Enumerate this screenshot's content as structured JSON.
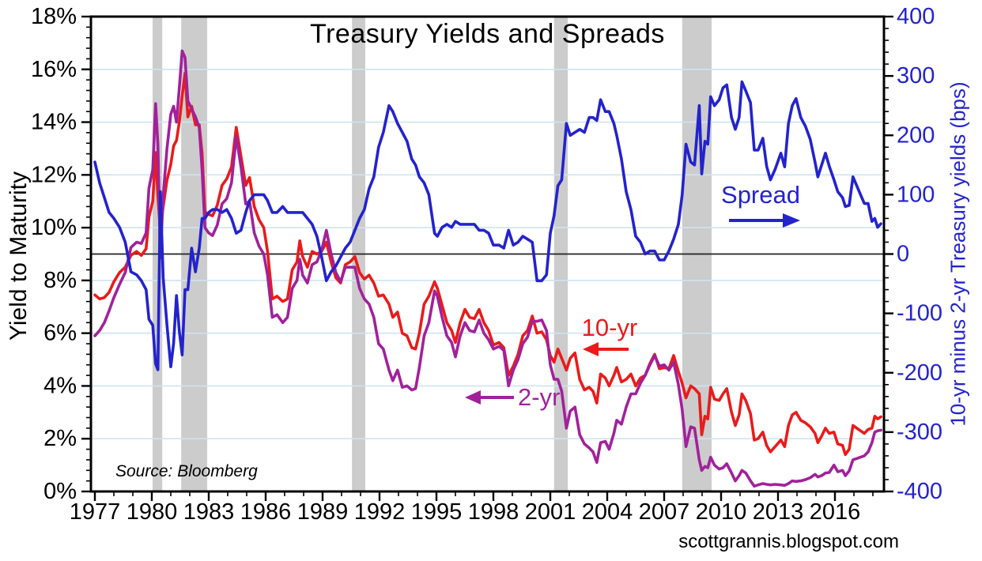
{
  "chart_data": {
    "type": "line",
    "title": "Treasury Yields and Spreads",
    "source": "Source: Bloomberg",
    "website": "scottgrannis.blogspot.com",
    "left_axis": {
      "title": "Yield to Maturity",
      "unit": "%",
      "min": 0,
      "max": 18,
      "major_step": 2,
      "minor_step": 0.4,
      "tick_labels": [
        "0%",
        "2%",
        "4%",
        "6%",
        "8%",
        "10%",
        "12%",
        "14%",
        "16%",
        "18%"
      ]
    },
    "right_axis": {
      "title": "10-yr minus 2-yr Treasury yields (bps)",
      "unit": "bps",
      "min": -400,
      "max": 400,
      "major_step": 100,
      "minor_step": 20,
      "tick_labels": [
        "-400",
        "-300",
        "-200",
        "-100",
        "0",
        "100",
        "200",
        "300",
        "400"
      ]
    },
    "x_axis": {
      "min": 1977,
      "max": 2018.7,
      "major_step": 3,
      "minor_step": 1,
      "tick_labels": [
        "1977",
        "1980",
        "1983",
        "1986",
        "1989",
        "1992",
        "1995",
        "1998",
        "2001",
        "2004",
        "2007",
        "2010",
        "2013",
        "2016"
      ]
    },
    "grid": "horizontal-only",
    "zero_line_bps": 0,
    "recession_bands": [
      [
        1980.04,
        1980.55
      ],
      [
        1981.55,
        1982.92
      ],
      [
        1990.55,
        1991.25
      ],
      [
        2001.2,
        2001.92
      ],
      [
        2007.95,
        2009.5
      ]
    ],
    "annotations": {
      "spread": "Spread",
      "ten_year": "10-yr",
      "two_year": "2-yr"
    },
    "series_meta": [
      {
        "name": "10-yr",
        "axis": "left",
        "color": "#e91b1b"
      },
      {
        "name": "2-yr",
        "axis": "left",
        "color": "#a1219b"
      },
      {
        "name": "Spread",
        "axis": "right",
        "color": "#2323cd"
      }
    ],
    "points_format": [
      "year",
      "ten_year_yield_pct",
      "two_year_yield_pct",
      "spread_bps"
    ],
    "points": [
      [
        1977.0,
        7.45,
        5.9,
        155
      ],
      [
        1977.25,
        7.3,
        6.1,
        120
      ],
      [
        1977.5,
        7.35,
        6.4,
        95
      ],
      [
        1977.75,
        7.55,
        6.85,
        70
      ],
      [
        1978.0,
        7.95,
        7.35,
        60
      ],
      [
        1978.3,
        8.3,
        7.85,
        45
      ],
      [
        1978.6,
        8.5,
        8.3,
        20
      ],
      [
        1978.9,
        8.95,
        9.25,
        -30
      ],
      [
        1979.2,
        9.1,
        9.45,
        -35
      ],
      [
        1979.45,
        8.95,
        9.4,
        -45
      ],
      [
        1979.7,
        9.2,
        9.8,
        -60
      ],
      [
        1979.85,
        10.4,
        11.5,
        -110
      ],
      [
        1980.05,
        11.0,
        12.2,
        -120
      ],
      [
        1980.2,
        12.85,
        14.7,
        -185
      ],
      [
        1980.32,
        11.2,
        13.15,
        -195
      ],
      [
        1980.45,
        9.9,
        8.85,
        105
      ],
      [
        1980.6,
        10.8,
        11.2,
        -40
      ],
      [
        1980.8,
        11.8,
        13.0,
        -120
      ],
      [
        1981.0,
        12.4,
        14.3,
        -190
      ],
      [
        1981.15,
        13.1,
        14.6,
        -150
      ],
      [
        1981.3,
        13.3,
        14.0,
        -70
      ],
      [
        1981.45,
        14.0,
        15.3,
        -130
      ],
      [
        1981.6,
        15.0,
        16.7,
        -170
      ],
      [
        1981.75,
        15.85,
        16.45,
        -60
      ],
      [
        1981.9,
        14.2,
        14.8,
        -60
      ],
      [
        1982.1,
        14.6,
        14.5,
        10
      ],
      [
        1982.3,
        13.9,
        14.2,
        -30
      ],
      [
        1982.5,
        13.9,
        13.8,
        10
      ],
      [
        1982.65,
        12.8,
        12.2,
        60
      ],
      [
        1982.8,
        10.6,
        10.0,
        60
      ],
      [
        1983.0,
        10.5,
        9.8,
        70
      ],
      [
        1983.2,
        10.45,
        9.7,
        75
      ],
      [
        1983.45,
        10.85,
        10.1,
        75
      ],
      [
        1983.7,
        11.6,
        10.9,
        70
      ],
      [
        1983.95,
        11.85,
        11.1,
        75
      ],
      [
        1984.2,
        12.3,
        11.7,
        60
      ],
      [
        1984.45,
        13.8,
        13.45,
        35
      ],
      [
        1984.7,
        12.7,
        12.3,
        40
      ],
      [
        1984.95,
        11.6,
        10.9,
        70
      ],
      [
        1985.15,
        11.9,
        11.0,
        90
      ],
      [
        1985.4,
        10.8,
        9.8,
        100
      ],
      [
        1985.65,
        10.3,
        9.3,
        100
      ],
      [
        1985.9,
        10.0,
        9.0,
        100
      ],
      [
        1986.1,
        9.1,
        8.2,
        90
      ],
      [
        1986.35,
        7.3,
        6.6,
        70
      ],
      [
        1986.6,
        7.4,
        6.7,
        70
      ],
      [
        1986.9,
        7.2,
        6.4,
        80
      ],
      [
        1987.15,
        7.3,
        6.6,
        70
      ],
      [
        1987.4,
        8.4,
        7.7,
        70
      ],
      [
        1987.65,
        8.7,
        8.0,
        70
      ],
      [
        1987.8,
        9.5,
        8.8,
        70
      ],
      [
        1987.95,
        8.9,
        8.2,
        70
      ],
      [
        1988.2,
        8.5,
        7.9,
        60
      ],
      [
        1988.45,
        9.1,
        8.6,
        50
      ],
      [
        1988.7,
        9.0,
        8.7,
        30
      ],
      [
        1988.95,
        9.1,
        9.15,
        -5
      ],
      [
        1989.2,
        9.45,
        9.9,
        -45
      ],
      [
        1989.45,
        8.7,
        9.0,
        -30
      ],
      [
        1989.7,
        8.1,
        8.3,
        -20
      ],
      [
        1989.95,
        7.9,
        7.95,
        -5
      ],
      [
        1990.2,
        8.6,
        8.5,
        10
      ],
      [
        1990.45,
        8.7,
        8.5,
        20
      ],
      [
        1990.7,
        8.9,
        8.5,
        40
      ],
      [
        1990.95,
        8.3,
        7.7,
        60
      ],
      [
        1991.2,
        8.05,
        7.3,
        75
      ],
      [
        1991.45,
        8.2,
        7.1,
        110
      ],
      [
        1991.7,
        7.9,
        6.6,
        130
      ],
      [
        1991.95,
        7.4,
        5.6,
        180
      ],
      [
        1992.2,
        7.45,
        5.4,
        205
      ],
      [
        1992.5,
        7.1,
        4.6,
        250
      ],
      [
        1992.7,
        6.6,
        4.2,
        240
      ],
      [
        1992.95,
        6.8,
        4.6,
        220
      ],
      [
        1993.2,
        6.0,
        3.95,
        205
      ],
      [
        1993.45,
        5.9,
        4.0,
        190
      ],
      [
        1993.7,
        5.45,
        3.85,
        160
      ],
      [
        1993.9,
        5.4,
        3.9,
        150
      ],
      [
        1994.1,
        6.0,
        4.7,
        130
      ],
      [
        1994.35,
        7.1,
        5.9,
        120
      ],
      [
        1994.6,
        7.4,
        6.4,
        100
      ],
      [
        1994.9,
        7.95,
        7.6,
        35
      ],
      [
        1995.05,
        7.7,
        7.4,
        30
      ],
      [
        1995.3,
        7.05,
        6.6,
        45
      ],
      [
        1995.55,
        6.4,
        5.9,
        50
      ],
      [
        1995.8,
        6.1,
        5.65,
        45
      ],
      [
        1996.0,
        5.65,
        5.1,
        55
      ],
      [
        1996.25,
        6.4,
        5.9,
        50
      ],
      [
        1996.5,
        6.9,
        6.4,
        50
      ],
      [
        1996.75,
        6.6,
        6.1,
        50
      ],
      [
        1997.0,
        6.55,
        6.05,
        50
      ],
      [
        1997.25,
        6.9,
        6.5,
        40
      ],
      [
        1997.5,
        6.4,
        6.0,
        40
      ],
      [
        1997.75,
        6.1,
        5.75,
        35
      ],
      [
        1998.0,
        5.55,
        5.4,
        15
      ],
      [
        1998.3,
        5.65,
        5.5,
        15
      ],
      [
        1998.55,
        5.45,
        5.35,
        10
      ],
      [
        1998.8,
        4.4,
        4.0,
        40
      ],
      [
        1999.05,
        4.75,
        4.6,
        15
      ],
      [
        1999.3,
        5.2,
        5.0,
        20
      ],
      [
        1999.55,
        5.9,
        5.6,
        30
      ],
      [
        1999.8,
        6.1,
        5.85,
        25
      ],
      [
        2000.05,
        6.65,
        6.45,
        20
      ],
      [
        2000.3,
        6.0,
        6.45,
        -45
      ],
      [
        2000.55,
        6.05,
        6.5,
        -45
      ],
      [
        2000.8,
        5.75,
        6.1,
        -35
      ],
      [
        2001.0,
        5.15,
        4.8,
        35
      ],
      [
        2001.2,
        4.9,
        4.25,
        65
      ],
      [
        2001.4,
        5.4,
        4.25,
        115
      ],
      [
        2001.6,
        5.05,
        3.8,
        125
      ],
      [
        2001.85,
        4.6,
        2.4,
        220
      ],
      [
        2002.05,
        5.05,
        3.05,
        200
      ],
      [
        2002.3,
        5.25,
        3.2,
        205
      ],
      [
        2002.55,
        4.25,
        2.15,
        210
      ],
      [
        2002.8,
        3.85,
        1.8,
        205
      ],
      [
        2003.05,
        3.95,
        1.65,
        230
      ],
      [
        2003.25,
        3.8,
        1.5,
        230
      ],
      [
        2003.45,
        3.35,
        1.1,
        225
      ],
      [
        2003.65,
        4.45,
        1.85,
        260
      ],
      [
        2003.9,
        4.3,
        1.9,
        240
      ],
      [
        2004.1,
        4.0,
        1.6,
        240
      ],
      [
        2004.35,
        4.4,
        2.2,
        220
      ],
      [
        2004.5,
        4.7,
        2.7,
        200
      ],
      [
        2004.75,
        4.15,
        2.55,
        160
      ],
      [
        2005.0,
        4.25,
        3.2,
        105
      ],
      [
        2005.25,
        4.45,
        3.7,
        75
      ],
      [
        2005.5,
        4.0,
        3.7,
        30
      ],
      [
        2005.75,
        4.3,
        4.1,
        20
      ],
      [
        2006.0,
        4.4,
        4.4,
        0
      ],
      [
        2006.25,
        4.85,
        4.8,
        5
      ],
      [
        2006.5,
        5.2,
        5.15,
        5
      ],
      [
        2006.75,
        4.65,
        4.75,
        -10
      ],
      [
        2007.0,
        4.7,
        4.8,
        -10
      ],
      [
        2007.25,
        4.65,
        4.6,
        5
      ],
      [
        2007.5,
        5.15,
        4.9,
        25
      ],
      [
        2007.75,
        4.55,
        4.05,
        50
      ],
      [
        2007.95,
        4.1,
        3.1,
        100
      ],
      [
        2008.15,
        3.55,
        1.7,
        185
      ],
      [
        2008.4,
        4.0,
        2.45,
        155
      ],
      [
        2008.6,
        3.9,
        2.4,
        150
      ],
      [
        2008.85,
        3.7,
        1.2,
        250
      ],
      [
        2008.98,
        2.15,
        0.8,
        135
      ],
      [
        2009.15,
        2.85,
        0.95,
        190
      ],
      [
        2009.3,
        2.75,
        0.9,
        185
      ],
      [
        2009.45,
        3.95,
        1.3,
        265
      ],
      [
        2009.65,
        3.5,
        1.0,
        250
      ],
      [
        2009.9,
        3.45,
        0.85,
        260
      ],
      [
        2010.1,
        3.7,
        0.9,
        280
      ],
      [
        2010.3,
        3.9,
        1.05,
        285
      ],
      [
        2010.55,
        3.0,
        0.7,
        230
      ],
      [
        2010.75,
        2.5,
        0.4,
        210
      ],
      [
        2010.95,
        2.9,
        0.6,
        230
      ],
      [
        2011.1,
        3.7,
        0.8,
        290
      ],
      [
        2011.3,
        3.45,
        0.7,
        275
      ],
      [
        2011.55,
        2.95,
        0.4,
        255
      ],
      [
        2011.75,
        1.95,
        0.2,
        175
      ],
      [
        2011.95,
        2.0,
        0.25,
        175
      ],
      [
        2012.2,
        2.25,
        0.3,
        195
      ],
      [
        2012.4,
        1.75,
        0.27,
        148
      ],
      [
        2012.6,
        1.5,
        0.25,
        125
      ],
      [
        2012.85,
        1.7,
        0.27,
        143
      ],
      [
        2013.15,
        1.95,
        0.25,
        170
      ],
      [
        2013.35,
        1.7,
        0.23,
        147
      ],
      [
        2013.55,
        2.5,
        0.3,
        220
      ],
      [
        2013.75,
        2.9,
        0.4,
        250
      ],
      [
        2013.95,
        3.0,
        0.38,
        262
      ],
      [
        2014.2,
        2.7,
        0.4,
        230
      ],
      [
        2014.45,
        2.6,
        0.45,
        215
      ],
      [
        2014.7,
        2.45,
        0.52,
        193
      ],
      [
        2014.95,
        2.2,
        0.65,
        155
      ],
      [
        2015.1,
        1.85,
        0.55,
        130
      ],
      [
        2015.3,
        2.1,
        0.6,
        150
      ],
      [
        2015.5,
        2.4,
        0.7,
        170
      ],
      [
        2015.7,
        2.2,
        0.72,
        148
      ],
      [
        2015.95,
        2.25,
        1.0,
        125
      ],
      [
        2016.15,
        1.8,
        0.75,
        105
      ],
      [
        2016.4,
        1.75,
        0.8,
        95
      ],
      [
        2016.55,
        1.4,
        0.6,
        80
      ],
      [
        2016.75,
        1.6,
        0.78,
        82
      ],
      [
        2016.95,
        2.5,
        1.2,
        130
      ],
      [
        2017.15,
        2.4,
        1.25,
        115
      ],
      [
        2017.35,
        2.3,
        1.3,
        100
      ],
      [
        2017.55,
        2.2,
        1.35,
        85
      ],
      [
        2017.75,
        2.35,
        1.5,
        85
      ],
      [
        2017.95,
        2.4,
        1.85,
        55
      ],
      [
        2018.1,
        2.85,
        2.25,
        60
      ],
      [
        2018.25,
        2.75,
        2.3,
        45
      ],
      [
        2018.42,
        2.83,
        2.32,
        51
      ]
    ]
  },
  "colors": {
    "ten_year": "#e91b1b",
    "two_year": "#a1219b",
    "spread": "#2323cd",
    "gridline": "#cfe3f2",
    "recession_band": "#cccccc",
    "axis": "#000000",
    "zero_line": "#222222",
    "left_tick_text": "#000000",
    "right_tick_text": "#2323cd",
    "x_tick_text": "#000000"
  }
}
